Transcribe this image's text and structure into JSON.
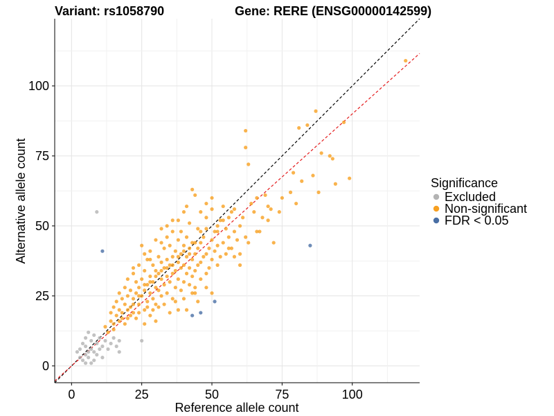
{
  "header": {
    "variant_label": "Variant: rs1058790",
    "gene_label": "Gene: RERE (ENSG00000142599)"
  },
  "chart_data": {
    "type": "scatter",
    "xlabel": "Reference allele count",
    "ylabel": "Alternative allele count",
    "xlim": [
      -6,
      124
    ],
    "ylim": [
      -6,
      124
    ],
    "x_ticks": [
      0,
      25,
      50,
      75,
      100
    ],
    "y_ticks": [
      0,
      25,
      50,
      75,
      100
    ],
    "grid": true,
    "legend": {
      "title": "Significance",
      "placement": "right",
      "entries": [
        {
          "label": "Excluded",
          "color": "#b3b3b3"
        },
        {
          "label": "Non-significant",
          "color": "#f7a021"
        },
        {
          "label": "FDR < 0.05",
          "color": "#4a6fa5"
        }
      ]
    },
    "reference_lines": [
      {
        "style": "dashed",
        "color": "#000000",
        "slope": 1.0,
        "intercept": 0
      },
      {
        "style": "dashed",
        "color": "#e41a1c",
        "slope": 0.9,
        "intercept": 0
      }
    ],
    "series": [
      {
        "name": "Excluded",
        "color": "#b3b3b3",
        "points": [
          [
            2,
            5
          ],
          [
            3,
            3
          ],
          [
            3,
            6
          ],
          [
            4,
            2
          ],
          [
            4,
            8
          ],
          [
            5,
            1
          ],
          [
            5,
            4
          ],
          [
            5,
            7
          ],
          [
            5,
            10
          ],
          [
            6,
            3
          ],
          [
            6,
            5
          ],
          [
            6,
            12
          ],
          [
            7,
            1
          ],
          [
            7,
            6
          ],
          [
            7,
            9
          ],
          [
            8,
            2
          ],
          [
            8,
            5
          ],
          [
            8,
            11
          ],
          [
            9,
            4
          ],
          [
            9,
            8
          ],
          [
            9,
            55
          ],
          [
            10,
            6
          ],
          [
            10,
            10
          ],
          [
            11,
            3
          ],
          [
            11,
            7
          ],
          [
            12,
            9
          ],
          [
            13,
            6
          ],
          [
            14,
            8
          ],
          [
            15,
            10
          ],
          [
            16,
            7
          ],
          [
            17,
            5
          ],
          [
            17,
            9
          ],
          [
            25,
            9
          ]
        ]
      },
      {
        "name": "FDR < 0.05",
        "color": "#4a6fa5",
        "points": [
          [
            11,
            41
          ],
          [
            43,
            18
          ],
          [
            46,
            19
          ],
          [
            51,
            23
          ],
          [
            85,
            43
          ]
        ]
      },
      {
        "name": "Non-significant",
        "color": "#f7a021",
        "points": [
          [
            12,
            14
          ],
          [
            14,
            16
          ],
          [
            14,
            19
          ],
          [
            15,
            15
          ],
          [
            15,
            21
          ],
          [
            16,
            18
          ],
          [
            16,
            23
          ],
          [
            17,
            20
          ],
          [
            17,
            26
          ],
          [
            18,
            19
          ],
          [
            18,
            24
          ],
          [
            19,
            22
          ],
          [
            19,
            28
          ],
          [
            20,
            17
          ],
          [
            20,
            25
          ],
          [
            20,
            31
          ],
          [
            21,
            21
          ],
          [
            21,
            27
          ],
          [
            22,
            19
          ],
          [
            22,
            24
          ],
          [
            22,
            33
          ],
          [
            23,
            26
          ],
          [
            23,
            30
          ],
          [
            24,
            22
          ],
          [
            24,
            28
          ],
          [
            24,
            36
          ],
          [
            25,
            25
          ],
          [
            25,
            31
          ],
          [
            25,
            43
          ],
          [
            26,
            20
          ],
          [
            26,
            27
          ],
          [
            26,
            34
          ],
          [
            27,
            23
          ],
          [
            27,
            29
          ],
          [
            27,
            38
          ],
          [
            28,
            26
          ],
          [
            28,
            32
          ],
          [
            28,
            41
          ],
          [
            29,
            24
          ],
          [
            29,
            30
          ],
          [
            29,
            36
          ],
          [
            30,
            22
          ],
          [
            30,
            28
          ],
          [
            30,
            34
          ],
          [
            30,
            45
          ],
          [
            31,
            27
          ],
          [
            31,
            33
          ],
          [
            31,
            39
          ],
          [
            32,
            25
          ],
          [
            32,
            31
          ],
          [
            32,
            37
          ],
          [
            32,
            49
          ],
          [
            33,
            29
          ],
          [
            33,
            35
          ],
          [
            33,
            42
          ],
          [
            34,
            26
          ],
          [
            34,
            32
          ],
          [
            34,
            38
          ],
          [
            34,
            46
          ],
          [
            35,
            30
          ],
          [
            35,
            36
          ],
          [
            35,
            43
          ],
          [
            36,
            24
          ],
          [
            36,
            33
          ],
          [
            36,
            39
          ],
          [
            36,
            52
          ],
          [
            37,
            28
          ],
          [
            37,
            34
          ],
          [
            37,
            41
          ],
          [
            38,
            31
          ],
          [
            38,
            37
          ],
          [
            38,
            45
          ],
          [
            39,
            27
          ],
          [
            39,
            35
          ],
          [
            39,
            40
          ],
          [
            39,
            48
          ],
          [
            40,
            30
          ],
          [
            40,
            36
          ],
          [
            40,
            43
          ],
          [
            40,
            55
          ],
          [
            41,
            33
          ],
          [
            41,
            39
          ],
          [
            41,
            46
          ],
          [
            42,
            29
          ],
          [
            42,
            35
          ],
          [
            42,
            42
          ],
          [
            42,
            51
          ],
          [
            43,
            32
          ],
          [
            43,
            38
          ],
          [
            43,
            44
          ],
          [
            44,
            28
          ],
          [
            44,
            34
          ],
          [
            44,
            40
          ],
          [
            44,
            61
          ],
          [
            45,
            36
          ],
          [
            45,
            42
          ],
          [
            45,
            49
          ],
          [
            46,
            31
          ],
          [
            46,
            37
          ],
          [
            46,
            44
          ],
          [
            47,
            39
          ],
          [
            47,
            46
          ],
          [
            48,
            33
          ],
          [
            48,
            40
          ],
          [
            48,
            53
          ],
          [
            49,
            35
          ],
          [
            49,
            42
          ],
          [
            50,
            38
          ],
          [
            50,
            45
          ],
          [
            50,
            60
          ],
          [
            51,
            41
          ],
          [
            51,
            48
          ],
          [
            52,
            36
          ],
          [
            52,
            43
          ],
          [
            53,
            39
          ],
          [
            53,
            52
          ],
          [
            54,
            44
          ],
          [
            54,
            57
          ],
          [
            55,
            40
          ],
          [
            55,
            49
          ],
          [
            56,
            46
          ],
          [
            57,
            42
          ],
          [
            57,
            55
          ],
          [
            58,
            48
          ],
          [
            59,
            45
          ],
          [
            60,
            50
          ],
          [
            60,
            40
          ],
          [
            61,
            53
          ],
          [
            62,
            46
          ],
          [
            62,
            84
          ],
          [
            62,
            78
          ],
          [
            63,
            72
          ],
          [
            64,
            58
          ],
          [
            65,
            55
          ],
          [
            66,
            60
          ],
          [
            67,
            48
          ],
          [
            68,
            53
          ],
          [
            69,
            61
          ],
          [
            70,
            57
          ],
          [
            71,
            56
          ],
          [
            72,
            44
          ],
          [
            74,
            55
          ],
          [
            75,
            60
          ],
          [
            78,
            62
          ],
          [
            79,
            69
          ],
          [
            80,
            58
          ],
          [
            81,
            85
          ],
          [
            82,
            66
          ],
          [
            84,
            86
          ],
          [
            86,
            68
          ],
          [
            87,
            91
          ],
          [
            88,
            62
          ],
          [
            89,
            76
          ],
          [
            92,
            75
          ],
          [
            93,
            74
          ],
          [
            94,
            65
          ],
          [
            97,
            87
          ],
          [
            99,
            67
          ],
          [
            119,
            109
          ],
          [
            19,
            15
          ],
          [
            21,
            18
          ],
          [
            23,
            17
          ],
          [
            24,
            19
          ],
          [
            26,
            15
          ],
          [
            27,
            21
          ],
          [
            28,
            18
          ],
          [
            29,
            20
          ],
          [
            30,
            16
          ],
          [
            31,
            21
          ],
          [
            33,
            22
          ],
          [
            35,
            19
          ],
          [
            37,
            23
          ],
          [
            38,
            20
          ],
          [
            40,
            24
          ],
          [
            41,
            20
          ],
          [
            43,
            26
          ],
          [
            45,
            23
          ],
          [
            13,
            12
          ],
          [
            15,
            13
          ],
          [
            17,
            16
          ],
          [
            18,
            17
          ],
          [
            20,
            20
          ],
          [
            22,
            22
          ],
          [
            24,
            25
          ],
          [
            26,
            29
          ],
          [
            28,
            30
          ],
          [
            30,
            32
          ],
          [
            32,
            34
          ],
          [
            34,
            35
          ],
          [
            36,
            36
          ],
          [
            38,
            39
          ],
          [
            40,
            41
          ],
          [
            42,
            40
          ],
          [
            44,
            44
          ],
          [
            46,
            48
          ],
          [
            48,
            49
          ],
          [
            52,
            50
          ],
          [
            54,
            52
          ],
          [
            56,
            53
          ],
          [
            58,
            56
          ],
          [
            36,
            48
          ],
          [
            38,
            52
          ],
          [
            41,
            57
          ],
          [
            43,
            63
          ],
          [
            46,
            55
          ],
          [
            48,
            58
          ],
          [
            50,
            56
          ],
          [
            32,
            44
          ],
          [
            28,
            38
          ],
          [
            26,
            40
          ],
          [
            34,
            50
          ],
          [
            22,
            35
          ],
          [
            52,
            48
          ],
          [
            56,
            42
          ],
          [
            58,
            39
          ],
          [
            60,
            36
          ],
          [
            63,
            44
          ],
          [
            66,
            48
          ],
          [
            70,
            52
          ],
          [
            48,
            28
          ],
          [
            50,
            26
          ],
          [
            44,
            26
          ]
        ]
      }
    ]
  }
}
